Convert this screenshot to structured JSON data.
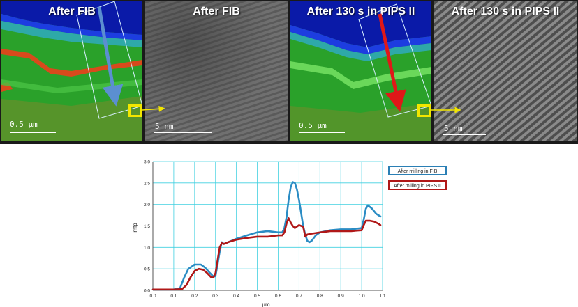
{
  "panels": [
    {
      "title": "After FIB",
      "scalebar": "0.5 µm"
    },
    {
      "title": "After FIB",
      "scalebar": "5 nm"
    },
    {
      "title": "After 130 s in PIPS II",
      "scalebar": "0.5 µm"
    },
    {
      "title": "After 130 s in PIPS II",
      "scalebar": "5 nm"
    }
  ],
  "colors": {
    "fib_series": "#2a8cc4",
    "pips_series": "#b01818",
    "grid": "#40d0e0",
    "marker_box": "#f2e600",
    "fib_arrow": "#5b8fd0",
    "pips_arrow": "#e01818"
  },
  "chart_data": {
    "type": "line",
    "xlabel": "µm",
    "ylabel": "mfp",
    "xlim": [
      0.0,
      1.1
    ],
    "ylim": [
      0.0,
      3.0
    ],
    "x_ticks": [
      "0.0",
      "0.1",
      "0.2",
      "0.3",
      "0.4",
      "0.5",
      "0.6",
      "0.7",
      "0.8",
      "0.9",
      "1.0",
      "1.1"
    ],
    "y_ticks": [
      "0.0",
      "0.5",
      "1.0",
      "1.5",
      "2.0",
      "2.5",
      "3.0"
    ],
    "grid": true,
    "legend": "top-right",
    "series": [
      {
        "name": "After milling in FIB",
        "x": [
          0.0,
          0.05,
          0.1,
          0.13,
          0.15,
          0.17,
          0.2,
          0.23,
          0.25,
          0.27,
          0.29,
          0.3,
          0.31,
          0.32,
          0.33,
          0.34,
          0.36,
          0.4,
          0.45,
          0.5,
          0.55,
          0.6,
          0.62,
          0.63,
          0.64,
          0.65,
          0.66,
          0.67,
          0.68,
          0.69,
          0.7,
          0.71,
          0.72,
          0.73,
          0.74,
          0.75,
          0.76,
          0.78,
          0.8,
          0.85,
          0.9,
          0.95,
          1.0,
          1.01,
          1.02,
          1.03,
          1.05,
          1.07,
          1.09
        ],
        "y": [
          0.02,
          0.02,
          0.02,
          0.05,
          0.3,
          0.5,
          0.6,
          0.6,
          0.53,
          0.42,
          0.32,
          0.33,
          0.6,
          0.9,
          1.12,
          1.08,
          1.12,
          1.2,
          1.28,
          1.35,
          1.38,
          1.35,
          1.35,
          1.45,
          1.7,
          2.1,
          2.4,
          2.52,
          2.5,
          2.35,
          2.1,
          1.8,
          1.5,
          1.3,
          1.15,
          1.12,
          1.15,
          1.28,
          1.35,
          1.4,
          1.42,
          1.42,
          1.45,
          1.65,
          1.9,
          1.98,
          1.9,
          1.78,
          1.72
        ]
      },
      {
        "name": "After milling in PIPS II",
        "x": [
          0.0,
          0.05,
          0.1,
          0.14,
          0.16,
          0.18,
          0.2,
          0.22,
          0.24,
          0.26,
          0.28,
          0.29,
          0.3,
          0.31,
          0.32,
          0.33,
          0.34,
          0.36,
          0.4,
          0.45,
          0.5,
          0.55,
          0.6,
          0.62,
          0.63,
          0.64,
          0.65,
          0.66,
          0.67,
          0.68,
          0.7,
          0.72,
          0.73,
          0.74,
          0.76,
          0.8,
          0.85,
          0.9,
          0.95,
          1.0,
          1.01,
          1.02,
          1.04,
          1.06,
          1.08,
          1.09
        ],
        "y": [
          0.02,
          0.02,
          0.02,
          0.03,
          0.12,
          0.3,
          0.45,
          0.5,
          0.48,
          0.4,
          0.3,
          0.3,
          0.4,
          0.7,
          1.0,
          1.1,
          1.08,
          1.12,
          1.18,
          1.22,
          1.25,
          1.25,
          1.28,
          1.28,
          1.35,
          1.55,
          1.68,
          1.58,
          1.5,
          1.45,
          1.52,
          1.48,
          1.25,
          1.3,
          1.32,
          1.35,
          1.38,
          1.38,
          1.38,
          1.4,
          1.52,
          1.62,
          1.62,
          1.6,
          1.55,
          1.52
        ]
      }
    ]
  }
}
